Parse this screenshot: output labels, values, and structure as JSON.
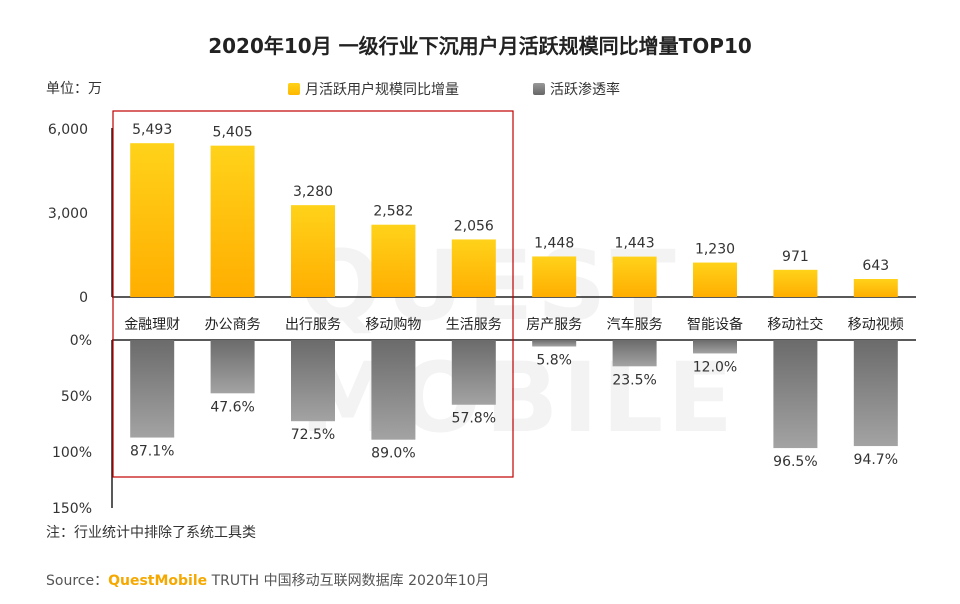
{
  "title": "2020年10月 一级行业下沉用户月活跃规模同比增量TOP10",
  "unit_label": "单位：万",
  "legend": {
    "series1": "月活跃用户规模同比增量",
    "series2": "活跃渗透率"
  },
  "note": "注：行业统计中排除了系统工具类",
  "source": {
    "prefix": "Source：",
    "brand": "QuestMobile",
    "suffix": " TRUTH 中国移动互联网数据库 2020年10月"
  },
  "watermark": "QUEST MOBILE",
  "colors": {
    "bar_top": "#ffcc00",
    "bar_gray": "#7f7f7f",
    "highlight_box": "#c00000"
  },
  "chart_data": [
    {
      "type": "bar",
      "title": "月活跃用户规模同比增量",
      "ylabel": "万",
      "categories": [
        "金融理财",
        "办公商务",
        "出行服务",
        "移动购物",
        "生活服务",
        "房产服务",
        "汽车服务",
        "智能设备",
        "移动社交",
        "移动视频"
      ],
      "values": [
        5493,
        5405,
        3280,
        2582,
        2056,
        1448,
        1443,
        1230,
        971,
        643
      ],
      "value_labels": [
        "5,493",
        "5,405",
        "3,280",
        "2,582",
        "2,056",
        "1,448",
        "1,443",
        "1,230",
        "971",
        "643"
      ],
      "ylim": [
        0,
        6000
      ],
      "yticks": [
        "6,000",
        "3,000",
        "0"
      ],
      "ytick_values": [
        6000,
        3000,
        0
      ]
    },
    {
      "type": "bar",
      "orientation": "downward",
      "title": "活跃渗透率",
      "categories": [
        "金融理财",
        "办公商务",
        "出行服务",
        "移动购物",
        "生活服务",
        "房产服务",
        "汽车服务",
        "智能设备",
        "移动社交",
        "移动视频"
      ],
      "values": [
        87.1,
        47.6,
        72.5,
        89.0,
        57.8,
        5.8,
        23.5,
        12.0,
        96.5,
        94.7
      ],
      "value_labels": [
        "87.1%",
        "47.6%",
        "72.5%",
        "89.0%",
        "57.8%",
        "5.8%",
        "23.5%",
        "12.0%",
        "96.5%",
        "94.7%"
      ],
      "ylim": [
        0,
        150
      ],
      "yticks": [
        "0%",
        "50%",
        "100%",
        "150%"
      ],
      "ytick_values": [
        0,
        50,
        100,
        150
      ]
    }
  ],
  "highlight": {
    "from_category_index": 0,
    "to_category_index": 4
  }
}
